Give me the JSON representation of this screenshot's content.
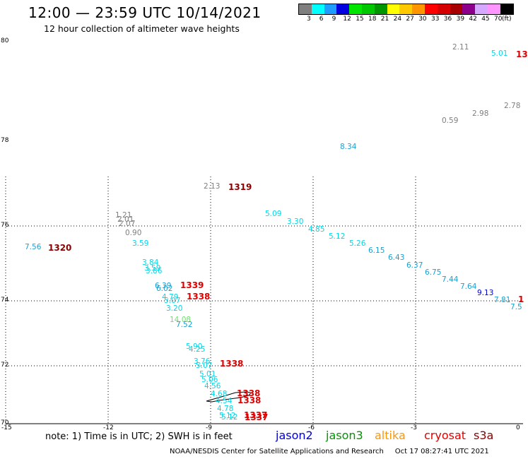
{
  "header": {
    "title": "12:00 — 23:59 UTC 10/14/2021",
    "subtitle": "12 hour collection of altimeter wave heights"
  },
  "colorbar": {
    "colors": [
      "#7f7f7f",
      "#00ffff",
      "#1e9dff",
      "#0000e0",
      "#00e600",
      "#00c800",
      "#009600",
      "#ffff00",
      "#ffc800",
      "#ff9600",
      "#ff0000",
      "#d70000",
      "#a80000",
      "#8c008c",
      "#d7a8ff",
      "#ff96ff",
      "#000000"
    ],
    "labels": [
      "3",
      "6",
      "9",
      "12",
      "15",
      "18",
      "21",
      "24",
      "27",
      "30",
      "33",
      "36",
      "39",
      "42",
      "45",
      "70"
    ],
    "unit": "(ft)"
  },
  "axes": {
    "lat_labels": [
      "80",
      "78",
      "76",
      "74",
      "72",
      "70"
    ],
    "lon_labels": [
      "-15",
      "-12",
      "-9",
      "-6",
      "-3",
      "0"
    ]
  },
  "readings": [
    {
      "t": "2.11",
      "c": "#7f7f7f"
    },
    {
      "t": "5.01",
      "c": "#00d8e8"
    },
    {
      "t": "0.59",
      "c": "#7f7f7f"
    },
    {
      "t": "2.98",
      "c": "#7f7f7f"
    },
    {
      "t": "2.78",
      "c": "#7f7f7f"
    },
    {
      "t": "8.34",
      "c": "#1aa0d0"
    },
    {
      "t": "2.13",
      "c": "#7f7f7f"
    },
    {
      "t": "5.09",
      "c": "#00d8e8"
    },
    {
      "t": "3.30",
      "c": "#00d8e8"
    },
    {
      "t": "4.85",
      "c": "#00d8e8"
    },
    {
      "t": "5.12",
      "c": "#00d8e8"
    },
    {
      "t": "5.26",
      "c": "#00d8e8"
    },
    {
      "t": "6.15",
      "c": "#1aa0d0"
    },
    {
      "t": "6.43",
      "c": "#1aa0d0"
    },
    {
      "t": "6.37",
      "c": "#1aa0d0"
    },
    {
      "t": "6.75",
      "c": "#1aa0d0"
    },
    {
      "t": "7.44",
      "c": "#1aa0d0"
    },
    {
      "t": "7.64",
      "c": "#1aa0d0"
    },
    {
      "t": "9.13",
      "c": "#0000c8"
    },
    {
      "t": "7.81",
      "c": "#1aa0d0"
    },
    {
      "t": "7.5",
      "c": "#1aa0d0"
    },
    {
      "t": "1.21",
      "c": "#7f7f7f"
    },
    {
      "t": "2.01",
      "c": "#7f7f7f"
    },
    {
      "t": "2.07",
      "c": "#7f7f7f"
    },
    {
      "t": "0.90",
      "c": "#7f7f7f"
    },
    {
      "t": "7.56",
      "c": "#1aa0d0"
    },
    {
      "t": "3.59",
      "c": "#00d8e8"
    },
    {
      "t": "3.84",
      "c": "#00d8e8"
    },
    {
      "t": "3.59",
      "c": "#00d8e8"
    },
    {
      "t": "3.86",
      "c": "#00d8e8"
    },
    {
      "t": "6.39",
      "c": "#1aa0d0"
    },
    {
      "t": "6.02",
      "c": "#1aa0d0"
    },
    {
      "t": "4.79",
      "c": "#00d8e8"
    },
    {
      "t": "5.07",
      "c": "#00d8e8"
    },
    {
      "t": "3.20",
      "c": "#00d8e8"
    },
    {
      "t": "14.08",
      "c": "#6fe06f"
    },
    {
      "t": "7.52",
      "c": "#1aa0d0"
    },
    {
      "t": "5.90",
      "c": "#00d8e8"
    },
    {
      "t": "4.25",
      "c": "#00d8e8"
    },
    {
      "t": "3.76",
      "c": "#00d8e8"
    },
    {
      "t": "5.07",
      "c": "#00d8e8"
    },
    {
      "t": "5.01",
      "c": "#00d8e8"
    },
    {
      "t": "5.06",
      "c": "#00d8e8"
    },
    {
      "t": "4.56",
      "c": "#00d8e8"
    },
    {
      "t": "4.68",
      "c": "#00d8e8"
    },
    {
      "t": "4.54",
      "c": "#00d8e8"
    },
    {
      "t": "4.78",
      "c": "#00d8e8"
    },
    {
      "t": "5.12",
      "c": "#00d8e8"
    },
    {
      "t": "5.12",
      "c": "#00d8e8"
    }
  ],
  "passes": [
    {
      "t": "1319",
      "c": "#8b0000"
    },
    {
      "t": "1320",
      "c": "#8b0000"
    },
    {
      "t": "1339",
      "c": "#e00000"
    },
    {
      "t": "1338",
      "c": "#e00000"
    },
    {
      "t": "1338",
      "c": "#e00000"
    },
    {
      "t": "1338",
      "c": "#e00000"
    },
    {
      "t": "1338",
      "c": "#e00000"
    },
    {
      "t": "1337",
      "c": "#e00000"
    },
    {
      "t": "1337",
      "c": "#e00000"
    },
    {
      "t": "13",
      "c": "#e00000"
    },
    {
      "t": "1",
      "c": "#e00000"
    }
  ],
  "note": "note:  1) Time is in UTC; 2) SWH is in feet",
  "legend": [
    {
      "label": "jason2",
      "color": "#0000d0"
    },
    {
      "label": "jason3",
      "color": "#009600"
    },
    {
      "label": "altika",
      "color": "#ff9600"
    },
    {
      "label": "cryosat",
      "color": "#e00000"
    },
    {
      "label": "s3a",
      "color": "#8b0000"
    }
  ],
  "footer": {
    "org": "NOAA/NESDIS Center for Satellite Applications and Research",
    "timestamp": "Oct 17 08:27:41 UTC 2021"
  }
}
